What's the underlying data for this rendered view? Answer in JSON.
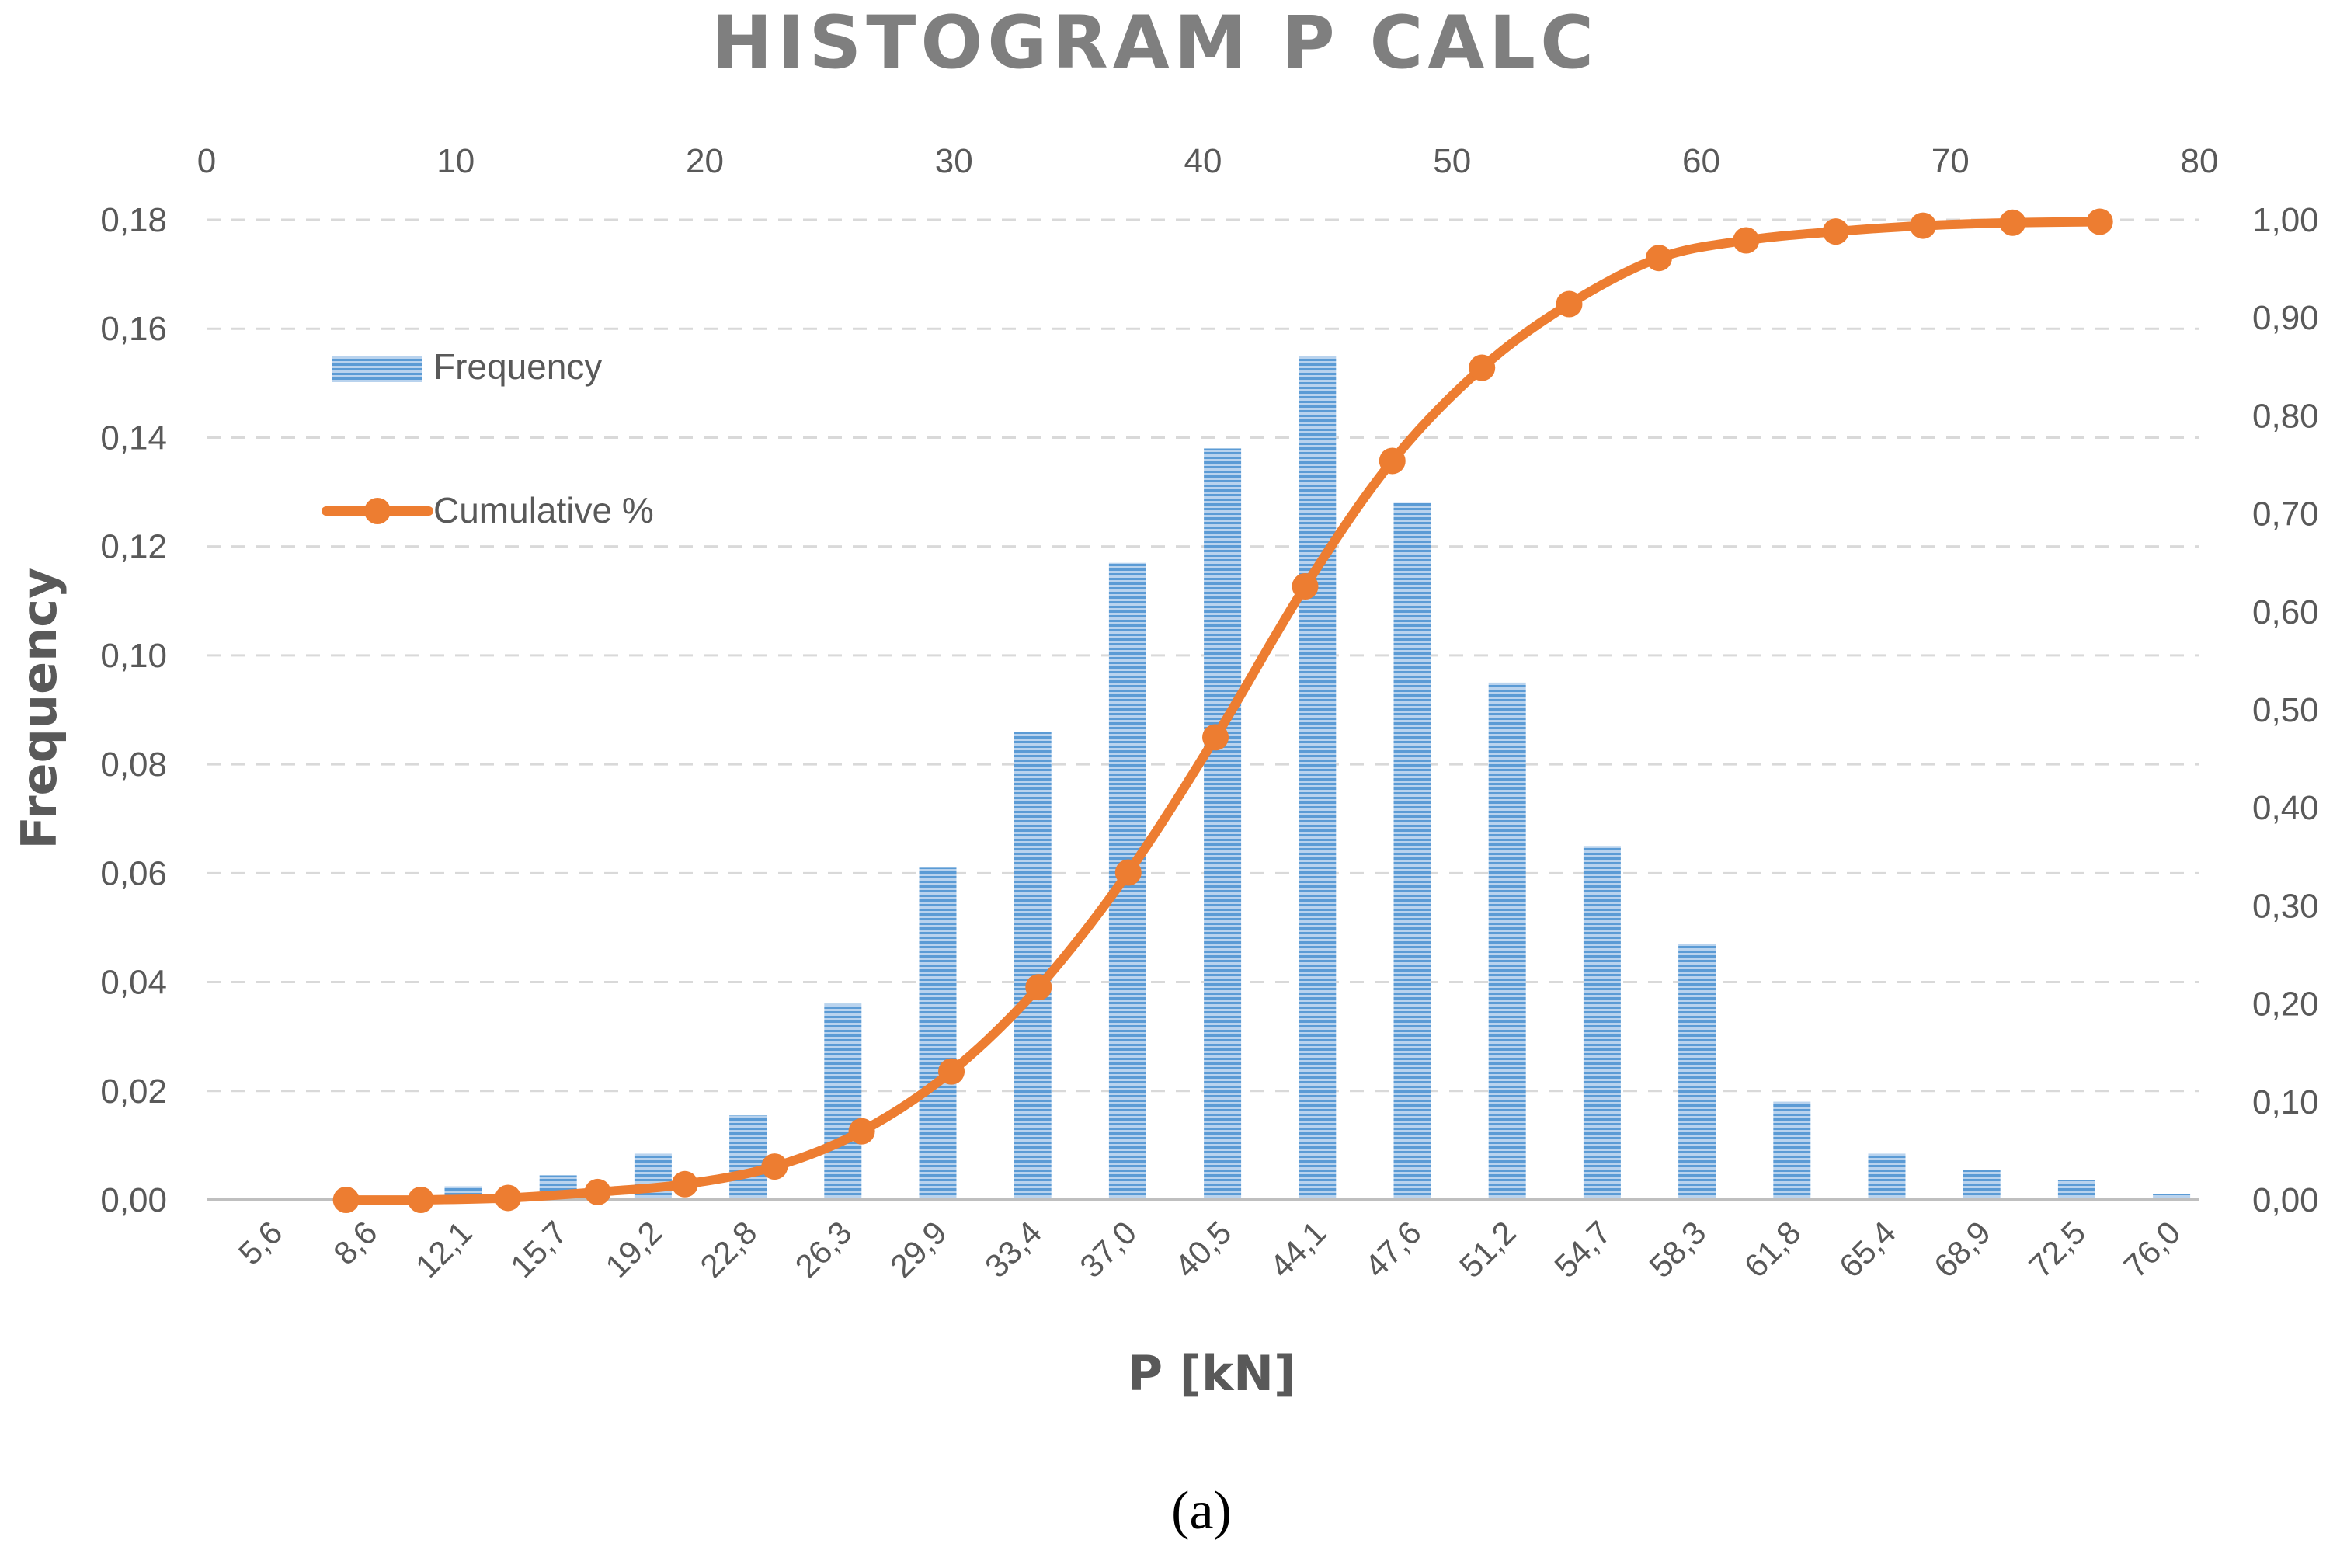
{
  "caption": "(a)",
  "chart_data": {
    "type": "bar",
    "title": "HISTOGRAM P CALC",
    "xlabel": "P [kN]",
    "ylabel": "Frequency",
    "categories": [
      "5,6",
      "8,6",
      "12,1",
      "15,7",
      "19,2",
      "22,8",
      "26,3",
      "29,9",
      "33,4",
      "37,0",
      "40,5",
      "44,1",
      "47,6",
      "51,2",
      "54,7",
      "58,3",
      "61,8",
      "65,4",
      "68,9",
      "72,5",
      "76,0"
    ],
    "series": [
      {
        "name": "Frequency",
        "type": "bar",
        "axis": "left",
        "color": "#5b9bd5",
        "values": [
          0.0,
          0.0,
          0.0025,
          0.0045,
          0.0085,
          0.0155,
          0.036,
          0.061,
          0.086,
          0.117,
          0.138,
          0.155,
          0.128,
          0.095,
          0.065,
          0.047,
          0.018,
          0.0085,
          0.0055,
          0.0037,
          0.001
        ]
      },
      {
        "name": "Cumulative %",
        "type": "line",
        "axis": "right",
        "color": "#ed7d31",
        "x": [
          5.6,
          8.6,
          12.1,
          15.7,
          19.2,
          22.8,
          26.3,
          29.9,
          33.4,
          37.0,
          40.5,
          44.1,
          47.6,
          51.2,
          54.7,
          58.3,
          61.8,
          65.4,
          68.9,
          72.5,
          76.0
        ],
        "values": [
          0.0,
          0.0,
          0.002,
          0.008,
          0.016,
          0.034,
          0.07,
          0.131,
          0.217,
          0.334,
          0.472,
          0.626,
          0.754,
          0.849,
          0.914,
          0.961,
          0.979,
          0.988,
          0.994,
          0.997,
          0.998
        ]
      }
    ],
    "y_left": {
      "min": 0,
      "max": 0.18,
      "step": 0.02,
      "tick_labels": [
        "0,00",
        "0,02",
        "0,04",
        "0,06",
        "0,08",
        "0,10",
        "0,12",
        "0,14",
        "0,16",
        "0,18"
      ]
    },
    "y_right": {
      "min": 0,
      "max": 1.0,
      "step": 0.1,
      "tick_labels": [
        "0,00",
        "0,10",
        "0,20",
        "0,30",
        "0,40",
        "0,50",
        "0,60",
        "0,70",
        "0,80",
        "0,90",
        "1,00"
      ]
    },
    "x_top": {
      "min": 0,
      "max": 80,
      "step": 10,
      "tick_labels": [
        "0",
        "10",
        "20",
        "30",
        "40",
        "50",
        "60",
        "70",
        "80"
      ]
    },
    "grid": "horizontal-dashed",
    "legend": {
      "position": "top-left-inside",
      "entries": [
        "Frequency",
        "Cumulative %"
      ]
    }
  }
}
